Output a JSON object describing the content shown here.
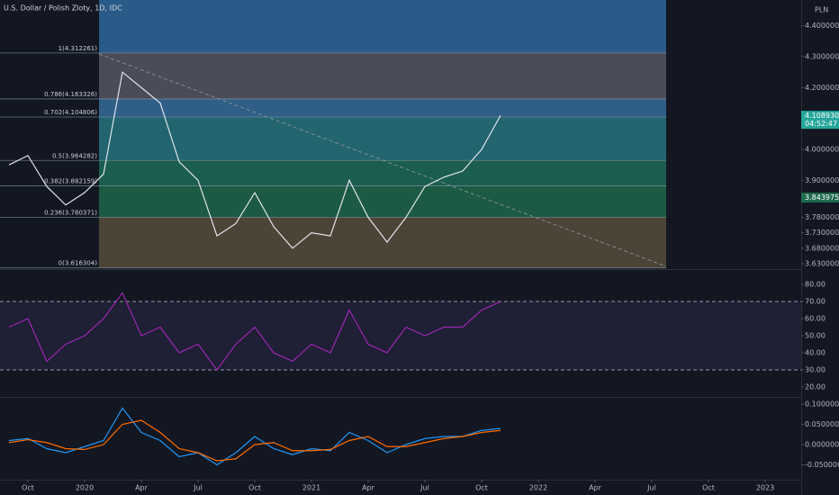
{
  "chart_data": [
    {
      "type": "line",
      "title": "U.S. Dollar / Polish Zloty, 1D, IDC",
      "currency": "PLN",
      "x": [
        "2019-09",
        "2019-10",
        "2019-11",
        "2019-12",
        "2020-01",
        "2020-02",
        "2020-03",
        "2020-04",
        "2020-05",
        "2020-06",
        "2020-07",
        "2020-08",
        "2020-09",
        "2020-10",
        "2020-11",
        "2020-12",
        "2021-01",
        "2021-02",
        "2021-03",
        "2021-04",
        "2021-05",
        "2021-06",
        "2021-07",
        "2021-08",
        "2021-09",
        "2021-10",
        "2021-11"
      ],
      "values": [
        3.95,
        3.98,
        3.88,
        3.82,
        3.86,
        3.92,
        4.25,
        4.2,
        4.15,
        3.96,
        3.9,
        3.72,
        3.76,
        3.86,
        3.75,
        3.68,
        3.73,
        3.72,
        3.9,
        3.78,
        3.7,
        3.78,
        3.88,
        3.91,
        3.93,
        4.0,
        4.11
      ],
      "color": "#e0e3eb",
      "ylim": [
        3.6154,
        4.4837
      ],
      "yticks": [
        {
          "value": 3.63,
          "label": "3.630000"
        },
        {
          "value": 3.68,
          "label": "3.680000"
        },
        {
          "value": 3.73,
          "label": "3.730000"
        },
        {
          "value": 3.78,
          "label": "3.780000"
        },
        {
          "value": 3.9,
          "label": "3.900000"
        },
        {
          "value": 4.0,
          "label": "4.000000"
        },
        {
          "value": 4.2,
          "label": "4.200000"
        },
        {
          "value": 4.3,
          "label": "4.300000"
        },
        {
          "value": 4.4,
          "label": "4.400000"
        }
      ],
      "fib_top_color": "#2a5a87",
      "fib_levels": [
        {
          "value": 4.312261,
          "label": "1(4.312261)",
          "color": "#4a4d57"
        },
        {
          "value": 4.163326,
          "label": "0.786(4.163326)",
          "color": "#2f5f86"
        },
        {
          "value": 4.104806,
          "label": "0.702(4.104806)",
          "color": "#22656f"
        },
        {
          "value": 3.964282,
          "label": "0.5(3.964282)",
          "color": "#1b5e4f"
        },
        {
          "value": 3.882159,
          "label": "0.382(3.882159)",
          "color": "#1c5a43"
        },
        {
          "value": 3.780371,
          "label": "0.236(3.780371)",
          "color": "#4c4437"
        },
        {
          "value": 3.616304,
          "label": "0(3.616304)",
          "color": "#4c4437"
        }
      ],
      "price_tags": [
        {
          "value": 4.10893,
          "label": "4.108930",
          "sub": "04:52:47",
          "color": "#26a69a"
        },
        {
          "value": 3.843975,
          "label": "3.843975",
          "color": "#1e6b4e"
        }
      ]
    },
    {
      "type": "line",
      "x": [
        "2019-09",
        "2019-10",
        "2019-11",
        "2019-12",
        "2020-01",
        "2020-02",
        "2020-03",
        "2020-04",
        "2020-05",
        "2020-06",
        "2020-07",
        "2020-08",
        "2020-09",
        "2020-10",
        "2020-11",
        "2020-12",
        "2021-01",
        "2021-02",
        "2021-03",
        "2021-04",
        "2021-05",
        "2021-06",
        "2021-07",
        "2021-08",
        "2021-09",
        "2021-10",
        "2021-11"
      ],
      "values": [
        55,
        60,
        35,
        45,
        50,
        60,
        75,
        50,
        55,
        40,
        45,
        30,
        45,
        55,
        40,
        35,
        45,
        40,
        65,
        45,
        40,
        55,
        50,
        55,
        55,
        65,
        70
      ],
      "color": "#9c27b0",
      "ylim": [
        14.7,
        87.4
      ],
      "yticks": [
        {
          "value": 20,
          "label": "20.00"
        },
        {
          "value": 30,
          "label": "30.00"
        },
        {
          "value": 40,
          "label": "40.00"
        },
        {
          "value": 50,
          "label": "50.00"
        },
        {
          "value": 60,
          "label": "60.00"
        },
        {
          "value": 70,
          "label": "70.00"
        },
        {
          "value": 80,
          "label": "80.00"
        }
      ],
      "levels": [
        70,
        30
      ]
    },
    {
      "type": "line",
      "x": [
        "2019-09",
        "2019-10",
        "2019-11",
        "2019-12",
        "2020-01",
        "2020-02",
        "2020-03",
        "2020-04",
        "2020-05",
        "2020-06",
        "2020-07",
        "2020-08",
        "2020-09",
        "2020-10",
        "2020-11",
        "2020-12",
        "2021-01",
        "2021-02",
        "2021-03",
        "2021-04",
        "2021-05",
        "2021-06",
        "2021-07",
        "2021-08",
        "2021-09",
        "2021-10",
        "2021-11"
      ],
      "series": [
        {
          "color": "#2196f3",
          "values": [
            0.01,
            0.015,
            -0.01,
            -0.02,
            -0.005,
            0.01,
            0.09,
            0.03,
            0.01,
            -0.03,
            -0.02,
            -0.05,
            -0.02,
            0.02,
            -0.01,
            -0.025,
            -0.01,
            -0.015,
            0.03,
            0.01,
            -0.02,
            0.0,
            0.015,
            0.02,
            0.02,
            0.035,
            0.04
          ]
        },
        {
          "color": "#ff6d00",
          "values": [
            0.005,
            0.012,
            0.005,
            -0.01,
            -0.012,
            0,
            0.05,
            0.06,
            0.03,
            -0.01,
            -0.02,
            -0.04,
            -0.035,
            0,
            0.005,
            -0.015,
            -0.015,
            -0.012,
            0.01,
            0.02,
            -0.005,
            -0.005,
            0.005,
            0.015,
            0.02,
            0.03,
            0.035
          ]
        }
      ],
      "ylim": [
        -0.08,
        0.1133
      ],
      "yticks": [
        {
          "value": -0.05,
          "label": "-0.050000"
        },
        {
          "value": 0,
          "label": "0.000000"
        },
        {
          "value": 0.05,
          "label": "0.050000"
        },
        {
          "value": 0.1,
          "label": "0.100000"
        }
      ],
      "xticks": [
        {
          "value": "2019-10",
          "label": "Oct"
        },
        {
          "value": "2020-01",
          "label": "2020"
        },
        {
          "value": "2020-04",
          "label": "Apr"
        },
        {
          "value": "2020-07",
          "label": "Jul"
        },
        {
          "value": "2020-10",
          "label": "Oct"
        },
        {
          "value": "2021-01",
          "label": "2021"
        },
        {
          "value": "2021-04",
          "label": "Apr"
        },
        {
          "value": "2021-07",
          "label": "Jul"
        },
        {
          "value": "2021-10",
          "label": "Oct"
        },
        {
          "value": "2022-01",
          "label": "2022"
        },
        {
          "value": "2022-04",
          "label": "Apr"
        },
        {
          "value": "2022-07",
          "label": "Jul"
        },
        {
          "value": "2022-10",
          "label": "Oct"
        },
        {
          "value": "2023-01",
          "label": "2023"
        }
      ]
    }
  ]
}
